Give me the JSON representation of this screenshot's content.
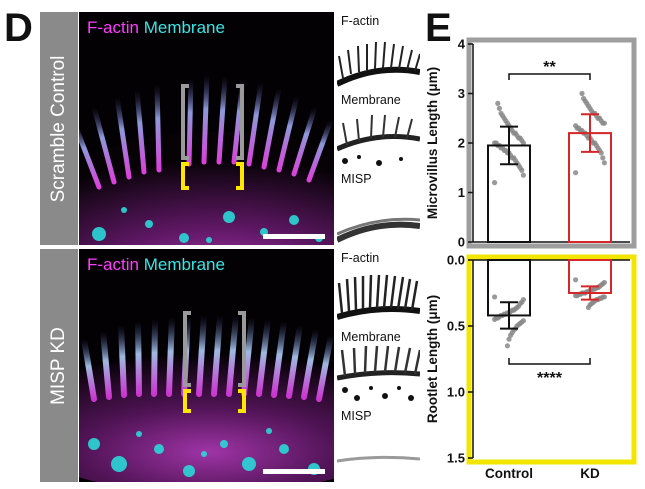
{
  "panel_d": {
    "letter": "D",
    "rows": [
      {
        "label": "Scramble Control",
        "channel_fact": "F-actin",
        "channel_memb": "Membrane",
        "insets": [
          "F-actin",
          "Membrane",
          "MISP"
        ]
      },
      {
        "label": "MISP KD",
        "channel_fact": "F-actin",
        "channel_memb": "Membrane",
        "insets": [
          "F-actin",
          "Membrane",
          "MISP"
        ]
      }
    ]
  },
  "panel_e": {
    "letter": "E",
    "colors": {
      "control": "#111111",
      "kd": "#d62728",
      "top_border": "#9e9e9e",
      "bottom_border": "#f2e600",
      "dots": "#888888"
    }
  },
  "chart_data": [
    {
      "type": "bar",
      "categories": [
        "Control",
        "KD"
      ],
      "values": [
        1.95,
        2.2
      ],
      "error": [
        0.38,
        0.38
      ],
      "ylabel": "Microvillus Length (μm)",
      "ylim": [
        0,
        4
      ],
      "yticks": [
        "0",
        "1",
        "2",
        "3",
        "4"
      ],
      "significance": "**",
      "points": {
        "Control": [
          1.2,
          1.35,
          1.45,
          1.5,
          1.55,
          1.6,
          1.65,
          1.7,
          1.7,
          1.75,
          1.8,
          1.8,
          1.85,
          1.85,
          1.9,
          1.9,
          1.95,
          1.95,
          2.0,
          2.0,
          2.0,
          2.05,
          2.1,
          2.1,
          2.15,
          2.2,
          2.2,
          2.25,
          2.3,
          2.35,
          2.4,
          2.45,
          2.5,
          2.55,
          2.6,
          2.7,
          2.8
        ],
        "KD": [
          1.4,
          1.6,
          1.7,
          1.8,
          1.85,
          1.9,
          1.95,
          2.0,
          2.0,
          2.05,
          2.1,
          2.1,
          2.15,
          2.2,
          2.2,
          2.25,
          2.25,
          2.3,
          2.3,
          2.35,
          2.4,
          2.4,
          2.45,
          2.5,
          2.5,
          2.55,
          2.6,
          2.6,
          2.65,
          2.7,
          2.75,
          2.8,
          2.85,
          2.9,
          3.0
        ]
      }
    },
    {
      "type": "bar",
      "categories": [
        "Control",
        "KD"
      ],
      "values": [
        0.42,
        0.25
      ],
      "error": [
        0.1,
        0.05
      ],
      "xticks": [
        "Control",
        "KD"
      ],
      "ylabel": "Rootlet Length (μm)",
      "ylim": [
        0.0,
        1.5
      ],
      "inverted": true,
      "yticks": [
        "0.0",
        "0.5",
        "1.0",
        "1.5"
      ],
      "significance": "****",
      "points": {
        "Control": [
          0.28,
          0.3,
          0.32,
          0.33,
          0.35,
          0.36,
          0.37,
          0.38,
          0.38,
          0.39,
          0.4,
          0.4,
          0.41,
          0.41,
          0.42,
          0.42,
          0.43,
          0.44,
          0.44,
          0.45,
          0.46,
          0.47,
          0.48,
          0.49,
          0.5,
          0.52,
          0.53,
          0.55,
          0.57,
          0.6,
          0.65
        ],
        "KD": [
          0.15,
          0.17,
          0.18,
          0.19,
          0.2,
          0.21,
          0.21,
          0.22,
          0.22,
          0.23,
          0.23,
          0.24,
          0.24,
          0.25,
          0.25,
          0.25,
          0.26,
          0.26,
          0.27,
          0.27,
          0.28,
          0.28,
          0.29,
          0.29,
          0.3,
          0.3,
          0.31,
          0.32,
          0.33,
          0.34,
          0.36
        ]
      }
    }
  ]
}
